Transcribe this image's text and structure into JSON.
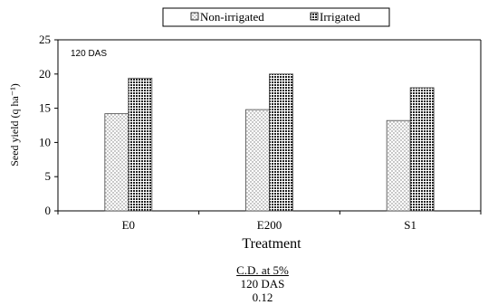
{
  "chart_data": {
    "type": "bar",
    "annotation": "120 DAS",
    "xlabel": "Treatment",
    "ylabel": "Seed yield (q ha⁻¹)",
    "categories": [
      "E0",
      "E200",
      "S1"
    ],
    "ylim": [
      0,
      25
    ],
    "yticks": [
      0,
      5,
      10,
      15,
      20,
      25
    ],
    "legend_position": "top-center",
    "series": [
      {
        "name": "Non-irrigated",
        "values": [
          14.2,
          14.8,
          13.2
        ],
        "fill": "dotted",
        "color": "#bfbfbf"
      },
      {
        "name": "Irrigated",
        "values": [
          19.4,
          20.0,
          18.0
        ],
        "fill": "checkered",
        "color": "#333333"
      }
    ]
  },
  "footer": {
    "cd_title": "C.D. at 5%",
    "cd_subtitle": "120 DAS",
    "cd_value": "0.12"
  }
}
